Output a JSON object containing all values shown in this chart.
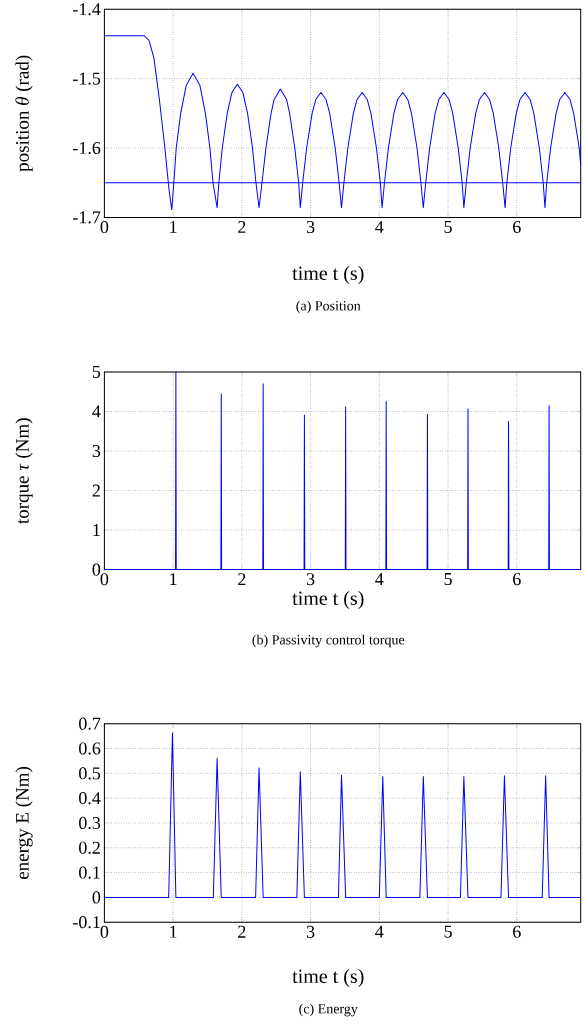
{
  "chart_data": [
    {
      "type": "line",
      "title": "(a) Position",
      "xlabel": "time t (s)",
      "ylabel": "position *θ* (rad)",
      "xlim": [
        0,
        6.93
      ],
      "xticks": [
        0,
        1,
        2,
        3,
        4,
        5,
        6
      ],
      "ylim": [
        -1.7,
        -1.4
      ],
      "yticks": [
        -1.7,
        -1.6,
        -1.5,
        -1.4
      ],
      "grid": true,
      "ref_lines": [
        {
          "axis": "y",
          "value": -1.65,
          "color": "#0000ff"
        }
      ],
      "x": [
        0,
        0.58,
        0.65,
        0.72,
        0.8,
        0.88,
        0.94,
        0.98,
        1.01,
        1.045,
        1.11,
        1.19,
        1.29,
        1.39,
        1.47,
        1.535,
        1.58,
        1.64,
        1.665,
        1.715,
        1.787,
        1.855,
        1.935,
        2.015,
        2.083,
        2.155,
        2.205,
        2.25,
        2.293,
        2.35,
        2.425,
        2.47,
        2.56,
        2.65,
        2.695,
        2.77,
        2.827,
        2.85,
        2.885,
        2.942,
        3.022,
        3.076,
        3.15,
        3.224,
        3.278,
        3.358,
        3.415,
        3.45,
        3.485,
        3.542,
        3.622,
        3.676,
        3.75,
        3.824,
        3.878,
        3.958,
        4.015,
        4.04,
        4.075,
        4.132,
        4.212,
        4.266,
        4.34,
        4.414,
        4.468,
        4.548,
        4.605,
        4.64,
        4.675,
        4.732,
        4.812,
        4.866,
        4.94,
        5.014,
        5.068,
        5.148,
        5.205,
        5.23,
        5.265,
        5.322,
        5.402,
        5.456,
        5.53,
        5.604,
        5.658,
        5.738,
        5.795,
        5.83,
        5.855,
        5.912,
        5.992,
        6.046,
        6.12,
        6.194,
        6.248,
        6.328,
        6.385,
        6.41,
        6.435,
        6.492,
        6.572,
        6.626,
        6.7,
        6.774,
        6.828,
        6.908,
        6.93
      ],
      "series": [
        {
          "color": "#0000ff",
          "values": [
            -1.438,
            -1.438,
            -1.445,
            -1.47,
            -1.53,
            -1.6,
            -1.66,
            -1.689,
            -1.65,
            -1.6,
            -1.55,
            -1.51,
            -1.492,
            -1.51,
            -1.55,
            -1.6,
            -1.65,
            -1.686,
            -1.65,
            -1.6,
            -1.55,
            -1.52,
            -1.508,
            -1.52,
            -1.55,
            -1.6,
            -1.65,
            -1.686,
            -1.65,
            -1.6,
            -1.55,
            -1.53,
            -1.515,
            -1.53,
            -1.55,
            -1.6,
            -1.65,
            -1.686,
            -1.65,
            -1.6,
            -1.55,
            -1.53,
            -1.52,
            -1.53,
            -1.55,
            -1.6,
            -1.65,
            -1.686,
            -1.65,
            -1.6,
            -1.55,
            -1.53,
            -1.52,
            -1.53,
            -1.55,
            -1.6,
            -1.65,
            -1.686,
            -1.65,
            -1.6,
            -1.55,
            -1.53,
            -1.52,
            -1.53,
            -1.55,
            -1.6,
            -1.65,
            -1.686,
            -1.65,
            -1.6,
            -1.55,
            -1.53,
            -1.52,
            -1.53,
            -1.55,
            -1.6,
            -1.65,
            -1.686,
            -1.65,
            -1.6,
            -1.55,
            -1.53,
            -1.52,
            -1.53,
            -1.55,
            -1.6,
            -1.65,
            -1.686,
            -1.65,
            -1.6,
            -1.55,
            -1.53,
            -1.52,
            -1.53,
            -1.55,
            -1.6,
            -1.65,
            -1.686,
            -1.65,
            -1.6,
            -1.55,
            -1.53,
            -1.52,
            -1.53,
            -1.55,
            -1.6,
            -1.625
          ]
        }
      ]
    },
    {
      "type": "line",
      "title": "(b) Passivity control torque",
      "xlabel": "time t (s)",
      "ylabel": "torque *τ* (Nm)",
      "xlim": [
        0,
        6.93
      ],
      "xticks": [
        0,
        1,
        2,
        3,
        4,
        5,
        6
      ],
      "ylim": [
        0,
        5
      ],
      "yticks": [
        0,
        1,
        2,
        3,
        4,
        5
      ],
      "grid": true,
      "x": [
        0,
        1.035,
        1.04,
        1.045,
        1.695,
        1.7,
        1.705,
        2.305,
        2.31,
        2.315,
        2.905,
        2.91,
        2.915,
        3.505,
        3.51,
        3.515,
        4.095,
        4.1,
        4.105,
        4.695,
        4.7,
        4.705,
        5.285,
        5.29,
        5.295,
        5.875,
        5.88,
        5.885,
        6.465,
        6.47,
        6.475,
        6.93
      ],
      "series": [
        {
          "color": "#0000ff",
          "values": [
            0,
            0,
            5,
            0,
            0,
            4.45,
            0,
            0,
            4.7,
            0,
            0,
            3.91,
            0,
            0,
            4.12,
            0,
            0,
            4.26,
            0,
            0,
            3.93,
            0,
            0,
            4.07,
            0,
            0,
            3.75,
            0,
            0,
            4.15,
            0,
            0
          ]
        }
      ]
    },
    {
      "type": "line",
      "title": "(c) Energy",
      "xlabel": "time t (s)",
      "ylabel": "energy E (Nm)",
      "xlim": [
        0,
        6.93
      ],
      "xticks": [
        0,
        1,
        2,
        3,
        4,
        5,
        6
      ],
      "ylim": [
        -0.1,
        0.7
      ],
      "yticks": [
        -0.1,
        0,
        0.1,
        0.2,
        0.3,
        0.4,
        0.5,
        0.6,
        0.7
      ],
      "grid": true,
      "x": [
        0,
        0.935,
        0.99,
        1.04,
        1.585,
        1.64,
        1.7,
        2.2,
        2.25,
        2.31,
        2.8,
        2.85,
        2.91,
        3.405,
        3.45,
        3.51,
        4.0,
        4.05,
        4.1,
        4.59,
        4.64,
        4.7,
        5.18,
        5.23,
        5.29,
        5.77,
        5.82,
        5.88,
        6.37,
        6.42,
        6.47,
        6.93
      ],
      "series": [
        {
          "color": "#0000ff",
          "values": [
            0,
            0,
            0.663,
            0,
            0,
            0.561,
            0,
            0,
            0.522,
            0,
            0,
            0.506,
            0,
            0,
            0.493,
            0,
            0,
            0.487,
            0,
            0,
            0.487,
            0,
            0,
            0.487,
            0,
            0,
            0.49,
            0,
            0,
            0.49,
            0,
            0
          ]
        }
      ]
    }
  ]
}
